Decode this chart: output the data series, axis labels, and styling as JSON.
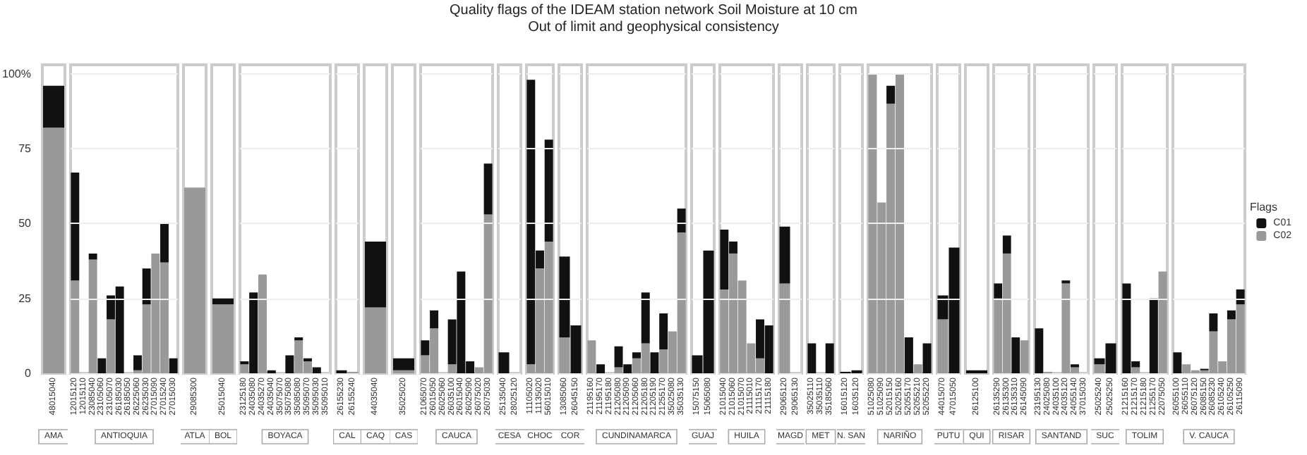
{
  "chart_data": [
    {
      "type": "bar",
      "stacked": true,
      "xlabel": "AMA",
      "categories": [
        "48015040"
      ],
      "series": [
        {
          "color": "#999999",
          "values": [
            82
          ]
        },
        {
          "color": "#111111",
          "values": [
            14
          ]
        }
      ],
      "ylim": [
        0,
        103
      ],
      "yticks": [
        0,
        25,
        50,
        75,
        {
          "value": 100,
          "label": "100%"
        }
      ]
    },
    {
      "type": "bar",
      "stacked": true,
      "xlabel": "ANTIOQUIA",
      "categories": [
        "12015120",
        "12015110",
        "23085040",
        "23105060",
        "23105070",
        "26185030",
        "26185050",
        "26225060",
        "26235030",
        "27015090",
        "27015240",
        "27015030"
      ],
      "series": [
        {
          "color": "#999999",
          "values": [
            31,
            0,
            38,
            0,
            18,
            0,
            0,
            1,
            23,
            40,
            37,
            0
          ]
        },
        {
          "color": "#111111",
          "values": [
            36,
            0,
            2,
            5,
            8,
            29,
            0,
            5,
            12,
            0,
            13,
            5
          ]
        }
      ],
      "ylim": [
        0,
        103
      ],
      "yticks": [
        0,
        25,
        50,
        75,
        100
      ],
      "grid": "y",
      "tick_labels": "x"
    },
    {
      "type": "bar",
      "stacked": true,
      "xlabel": "ATLA",
      "categories": [
        "29085300"
      ],
      "series": [
        {
          "color": "#999999",
          "values": [
            62
          ]
        },
        {
          "color": "#111111",
          "values": [
            0
          ]
        }
      ],
      "ylim": [
        0,
        103
      ],
      "tick_labels": "x"
    },
    {
      "type": "bar",
      "stacked": true,
      "xlabel": "BOL",
      "categories": [
        "25015040"
      ],
      "series": [
        {
          "color": "#999999",
          "values": [
            23
          ]
        },
        {
          "color": "#111111",
          "values": [
            2
          ]
        }
      ],
      "ylim": [
        0,
        103
      ],
      "tick_labels": "x"
    },
    {
      "type": "bar",
      "stacked": true,
      "xlabel": "BOYACA",
      "categories": [
        "23125180",
        "24035080",
        "24035270",
        "24035040",
        "35075070",
        "35075080",
        "35085080",
        "35095070",
        "35095030",
        "35095010"
      ],
      "series": [
        {
          "color": "#999999",
          "values": [
            3,
            0,
            33,
            0,
            0,
            0,
            11,
            4,
            0,
            0
          ]
        },
        {
          "color": "#111111",
          "values": [
            1,
            27,
            0,
            1,
            0,
            6,
            1,
            1,
            2,
            0
          ]
        }
      ],
      "ylim": [
        0,
        103
      ],
      "yticks": [
        0,
        25,
        50,
        75,
        100
      ],
      "grid": "y",
      "tick_labels": "x"
    },
    {
      "type": "bar",
      "stacked": true,
      "xlabel": "CAL",
      "categories": [
        "26155230",
        "26155240"
      ],
      "series": [
        {
          "color": "#999999",
          "values": [
            0,
            0.5
          ]
        },
        {
          "color": "#111111",
          "values": [
            1,
            0
          ]
        }
      ],
      "ylim": [
        0,
        103
      ],
      "yticks": [
        0,
        25,
        50,
        75,
        100
      ],
      "grid": "y",
      "tick_labels": "x"
    },
    {
      "type": "bar",
      "stacked": true,
      "xlabel": "CAQ",
      "categories": [
        "44035040"
      ],
      "series": [
        {
          "color": "#999999",
          "values": [
            22
          ]
        },
        {
          "color": "#111111",
          "values": [
            22
          ]
        }
      ],
      "ylim": [
        0,
        103
      ],
      "tick_labels": "x"
    },
    {
      "type": "bar",
      "stacked": true,
      "xlabel": "CAS",
      "categories": [
        "35025020"
      ],
      "series": [
        {
          "color": "#999999",
          "values": [
            1
          ]
        },
        {
          "color": "#111111",
          "values": [
            4
          ]
        }
      ],
      "ylim": [
        0,
        103
      ],
      "tick_labels": "x"
    },
    {
      "type": "bar",
      "stacked": true,
      "xlabel": "CAUCA",
      "categories": [
        "21065070",
        "26015050",
        "26025060",
        "26035100",
        "26015040",
        "26025090",
        "26075020",
        "26075030"
      ],
      "series": [
        {
          "color": "#999999",
          "values": [
            6,
            15,
            0,
            3,
            0,
            0,
            2,
            53
          ]
        },
        {
          "color": "#111111",
          "values": [
            5,
            6,
            0,
            15,
            34,
            4,
            0,
            17
          ]
        }
      ],
      "ylim": [
        0,
        103
      ],
      "yticks": [
        0,
        25,
        50,
        75,
        100
      ],
      "grid": "y",
      "tick_labels": "x"
    },
    {
      "type": "bar",
      "stacked": true,
      "xlabel": "CESA",
      "categories": [
        "25135040",
        "28025120"
      ],
      "series": [
        {
          "color": "#999999",
          "values": [
            0,
            0
          ]
        },
        {
          "color": "#111111",
          "values": [
            7,
            0
          ]
        }
      ],
      "ylim": [
        0,
        103
      ],
      "yticks": [
        0,
        25,
        50,
        75,
        100
      ],
      "grid": "y",
      "tick_labels": "x"
    },
    {
      "type": "bar",
      "stacked": true,
      "xlabel": "CHOC",
      "categories": [
        "11105020",
        "11135020",
        "56015010"
      ],
      "series": [
        {
          "color": "#999999",
          "values": [
            3,
            35,
            44
          ]
        },
        {
          "color": "#111111",
          "values": [
            95,
            6,
            34
          ]
        }
      ],
      "ylim": [
        0,
        103
      ],
      "yticks": [
        0,
        25,
        50,
        75,
        100
      ],
      "grid": "y",
      "tick_labels": "x"
    },
    {
      "type": "bar",
      "stacked": true,
      "xlabel": "COR",
      "categories": [
        "13085060",
        "26045150"
      ],
      "series": [
        {
          "color": "#999999",
          "values": [
            12,
            0
          ]
        },
        {
          "color": "#111111",
          "values": [
            27,
            16
          ]
        }
      ],
      "ylim": [
        0,
        103
      ],
      "yticks": [
        0,
        25,
        50,
        75,
        100
      ],
      "grid": "y",
      "tick_labels": "x"
    },
    {
      "type": "bar",
      "stacked": true,
      "title": "Quality flags of the IDEAM station network Soil Moisture at 10 cm",
      "subtitle": "Out of limit and geophysical consistency",
      "xlabel": "CUNDINAMARCA",
      "categories": [
        "21195160",
        "21195170",
        "21195180",
        "21205080",
        "21205090",
        "21205060",
        "21205180",
        "21205190",
        "21255170",
        "35025080",
        "35035130"
      ],
      "series": [
        {
          "color": "#999999",
          "values": [
            11,
            0,
            0,
            2,
            0,
            5,
            10,
            0,
            8,
            14,
            47
          ]
        },
        {
          "color": "#111111",
          "values": [
            0,
            3,
            0,
            7,
            3,
            2,
            17,
            7,
            12,
            0,
            8
          ]
        }
      ],
      "ylim": [
        0,
        103
      ],
      "yticks": [
        0,
        25,
        50,
        75,
        100
      ],
      "grid": "y",
      "tick_labels": "x"
    },
    {
      "type": "bar",
      "stacked": true,
      "xlabel": "GUAJ",
      "categories": [
        "15075150",
        "15065080"
      ],
      "series": [
        {
          "color": "#999999",
          "values": [
            0,
            0
          ]
        },
        {
          "color": "#111111",
          "values": [
            6,
            41
          ]
        }
      ],
      "ylim": [
        0,
        103
      ],
      "yticks": [
        0,
        25,
        50,
        75,
        100
      ],
      "grid": "y",
      "tick_labels": "x"
    },
    {
      "type": "bar",
      "stacked": true,
      "xlabel": "HUILA",
      "categories": [
        "21015040",
        "21015060",
        "21015070",
        "21115010",
        "21115170",
        "21115180"
      ],
      "series": [
        {
          "color": "#999999",
          "values": [
            28,
            40,
            31,
            10,
            5,
            0
          ]
        },
        {
          "color": "#111111",
          "values": [
            20,
            4,
            0,
            0,
            13,
            16
          ]
        }
      ],
      "ylim": [
        0,
        103
      ],
      "yticks": [
        0,
        25,
        50,
        75,
        100
      ],
      "grid": "y",
      "tick_labels": "x"
    },
    {
      "type": "bar",
      "stacked": true,
      "xlabel": "MAGD",
      "categories": [
        "29065120",
        "29065130"
      ],
      "series": [
        {
          "color": "#999999",
          "values": [
            30,
            0
          ]
        },
        {
          "color": "#111111",
          "values": [
            19,
            0
          ]
        }
      ],
      "ylim": [
        0,
        103
      ],
      "yticks": [
        0,
        25,
        50,
        75,
        100
      ],
      "grid": "y",
      "tick_labels": "x"
    },
    {
      "type": "bar",
      "stacked": true,
      "xlabel": "MET",
      "categories": [
        "35025110",
        "35035110",
        "35185060"
      ],
      "series": [
        {
          "color": "#999999",
          "values": [
            0,
            0,
            0
          ]
        },
        {
          "color": "#111111",
          "values": [
            10,
            0,
            10
          ]
        }
      ],
      "ylim": [
        0,
        103
      ],
      "yticks": [
        0,
        25,
        50,
        75,
        100
      ],
      "grid": "y",
      "tick_labels": "x"
    },
    {
      "type": "bar",
      "stacked": true,
      "xlabel": "N. SAN",
      "categories": [
        "16015120",
        "16035120"
      ],
      "series": [
        {
          "color": "#999999",
          "values": [
            0,
            0
          ]
        },
        {
          "color": "#111111",
          "values": [
            0.5,
            1
          ]
        }
      ],
      "ylim": [
        0,
        103
      ],
      "yticks": [
        0,
        25,
        50,
        75,
        100
      ],
      "grid": "y",
      "tick_labels": "x"
    },
    {
      "type": "bar",
      "stacked": true,
      "xlabel": "NARIÑO",
      "categories": [
        "51025080",
        "51025090",
        "52015150",
        "52025160",
        "52055170",
        "52055210",
        "52055220"
      ],
      "series": [
        {
          "color": "#999999",
          "values": [
            100,
            57,
            90,
            100,
            0,
            3,
            0
          ]
        },
        {
          "color": "#111111",
          "values": [
            0,
            0,
            6,
            0,
            12,
            0,
            10
          ]
        }
      ],
      "ylim": [
        0,
        103
      ],
      "yticks": [
        0,
        25,
        50,
        75,
        100
      ],
      "grid": "y",
      "tick_labels": "x"
    },
    {
      "type": "bar",
      "stacked": true,
      "xlabel": "PUTU",
      "categories": [
        "44015070",
        "47015050"
      ],
      "series": [
        {
          "color": "#999999",
          "values": [
            18,
            0
          ]
        },
        {
          "color": "#111111",
          "values": [
            8,
            42
          ]
        }
      ],
      "ylim": [
        0,
        103
      ],
      "yticks": [
        0,
        25,
        50,
        75,
        100
      ],
      "grid": "y",
      "tick_labels": "x"
    },
    {
      "type": "bar",
      "stacked": true,
      "xlabel": "QUI",
      "categories": [
        "26125100"
      ],
      "series": [
        {
          "color": "#999999",
          "values": [
            0
          ]
        },
        {
          "color": "#111111",
          "values": [
            1
          ]
        }
      ],
      "ylim": [
        0,
        103
      ],
      "tick_labels": "x"
    },
    {
      "type": "bar",
      "stacked": true,
      "xlabel": "RISAR",
      "categories": [
        "26135290",
        "26135300",
        "26135310",
        "26145090"
      ],
      "series": [
        {
          "color": "#999999",
          "values": [
            25,
            40,
            0,
            11
          ]
        },
        {
          "color": "#111111",
          "values": [
            5,
            6,
            12,
            0
          ]
        }
      ],
      "ylim": [
        0,
        103
      ],
      "yticks": [
        0,
        25,
        50,
        75,
        100
      ],
      "grid": "y",
      "tick_labels": "x"
    },
    {
      "type": "bar",
      "stacked": true,
      "xlabel": "SANTAND",
      "categories": [
        "23195130",
        "24025080",
        "24035100",
        "24035120",
        "24055140",
        "37015030"
      ],
      "series": [
        {
          "color": "#999999",
          "values": [
            0,
            0.5,
            0,
            30,
            2,
            0
          ]
        },
        {
          "color": "#111111",
          "values": [
            15,
            0,
            0,
            1,
            1,
            0
          ]
        }
      ],
      "ylim": [
        0,
        103
      ],
      "yticks": [
        0,
        25,
        50,
        75,
        100
      ],
      "grid": "y",
      "tick_labels": "x"
    },
    {
      "type": "bar",
      "stacked": true,
      "xlabel": "SUC",
      "categories": [
        "25025240",
        "25025250"
      ],
      "series": [
        {
          "color": "#999999",
          "values": [
            3,
            0
          ]
        },
        {
          "color": "#111111",
          "values": [
            2,
            10
          ]
        }
      ],
      "ylim": [
        0,
        103
      ],
      "yticks": [
        0,
        25,
        50,
        75,
        100
      ],
      "grid": "y",
      "tick_labels": "x"
    },
    {
      "type": "bar",
      "stacked": true,
      "xlabel": "TOLIM",
      "categories": [
        "21215160",
        "21215170",
        "21215180",
        "21255170",
        "22075050"
      ],
      "series": [
        {
          "color": "#999999",
          "values": [
            0,
            2,
            0,
            0,
            34
          ]
        },
        {
          "color": "#111111",
          "values": [
            30,
            2,
            0,
            25,
            0
          ]
        }
      ],
      "ylim": [
        0,
        103
      ],
      "yticks": [
        0,
        25,
        50,
        75,
        100
      ],
      "grid": "y",
      "tick_labels": "x"
    },
    {
      "type": "bar",
      "stacked": true,
      "xlabel": "V. CAUCA",
      "legend_title": "Flags",
      "legend": "right",
      "categories": [
        "26055100",
        "26055110",
        "26075120",
        "26085150",
        "26085230",
        "26105240",
        "26105250",
        "26115090"
      ],
      "series": [
        {
          "name": "C02",
          "color": "#999999",
          "values": [
            0,
            3,
            1,
            1,
            14,
            4,
            18,
            23
          ]
        },
        {
          "name": "C01",
          "color": "#111111",
          "values": [
            7,
            0,
            0,
            0.5,
            6,
            0,
            3,
            5
          ]
        }
      ],
      "ylim": [
        0,
        103
      ],
      "yticks": [
        0,
        25,
        50,
        75,
        100
      ],
      "grid": "y",
      "tick_labels": "x"
    }
  ]
}
